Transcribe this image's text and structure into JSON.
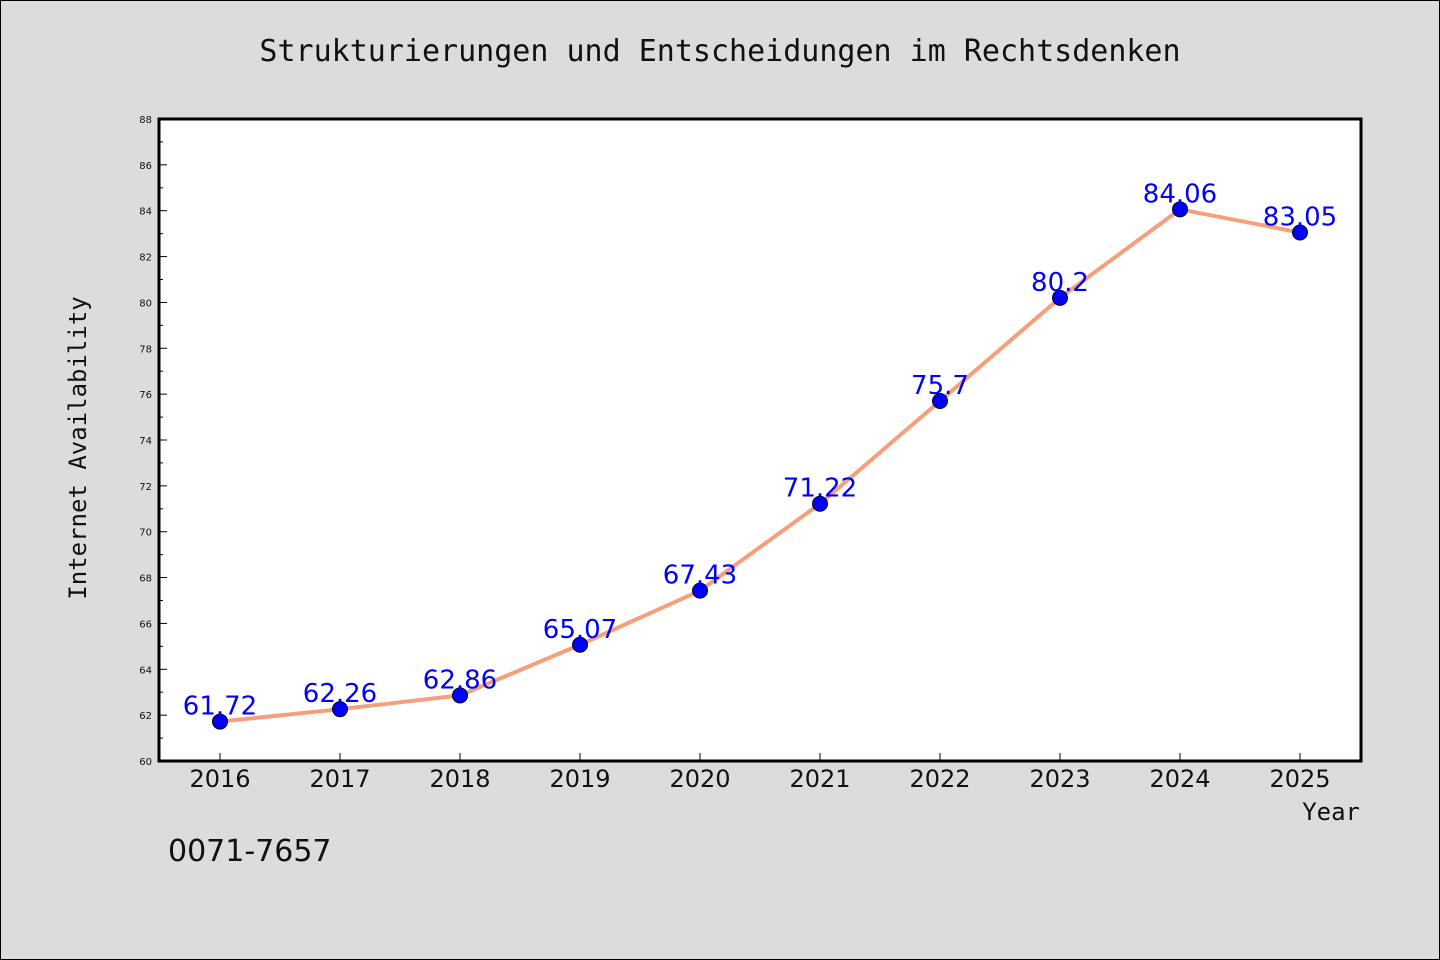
{
  "figure": {
    "title": "Strukturierungen und Entscheidungen im Rechtsdenken",
    "code": "0071-7657"
  },
  "colors": {
    "background": "#dcdcdc",
    "plot_background": "#ffffff",
    "line": "#f4a07a",
    "marker": "#0000ff",
    "data_label": "#0000ff"
  },
  "chart_data": {
    "type": "line",
    "title": "Strukturierungen und Entscheidungen im Rechtsdenken",
    "xlabel": "Year",
    "ylabel": "Internet Availability",
    "x": [
      "2016",
      "2017",
      "2018",
      "2019",
      "2020",
      "2021",
      "2022",
      "2023",
      "2024",
      "2025"
    ],
    "series": [
      {
        "values": [
          61.72,
          62.26,
          62.86,
          65.07,
          67.43,
          71.22,
          75.7,
          80.2,
          84.06,
          83.05
        ],
        "labels": [
          "61.72",
          "62.26",
          "62.86",
          "65.07",
          "67.43",
          "71.22",
          "75.7",
          "80.2",
          "84.06",
          "83.05"
        ]
      }
    ],
    "ylim": [
      60,
      88
    ],
    "yticks": [
      "60",
      "62",
      "64",
      "66",
      "68",
      "70",
      "72",
      "74",
      "76",
      "78",
      "80",
      "82",
      "84",
      "86",
      "88"
    ],
    "grid": false,
    "legend": "none"
  }
}
